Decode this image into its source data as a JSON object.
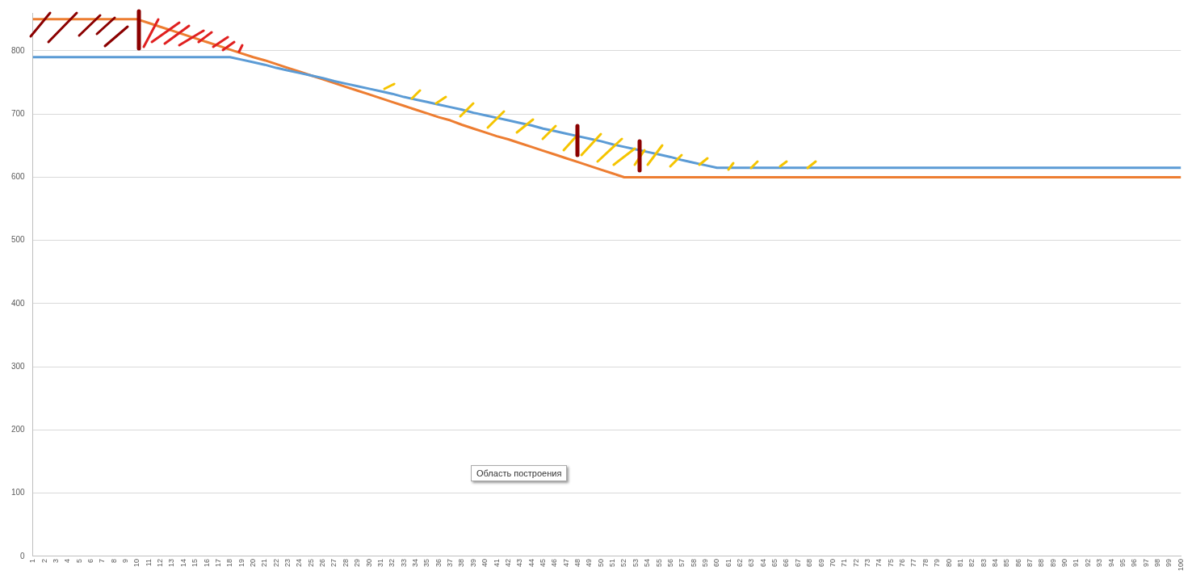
{
  "chart_data": {
    "type": "line",
    "categories": [
      "1",
      "2",
      "3",
      "4",
      "5",
      "6",
      "7",
      "8",
      "9",
      "10",
      "11",
      "12",
      "13",
      "14",
      "15",
      "16",
      "17",
      "18",
      "19",
      "20",
      "21",
      "22",
      "23",
      "24",
      "25",
      "26",
      "27",
      "28",
      "29",
      "30",
      "31",
      "32",
      "33",
      "34",
      "35",
      "36",
      "37",
      "38",
      "39",
      "40",
      "41",
      "42",
      "43",
      "44",
      "45",
      "46",
      "47",
      "48",
      "49",
      "50",
      "51",
      "52",
      "53",
      "54",
      "55",
      "56",
      "57",
      "58",
      "59",
      "60",
      "61",
      "62",
      "63",
      "64",
      "65",
      "66",
      "67",
      "68",
      "69",
      "70",
      "71",
      "72",
      "73",
      "74",
      "75",
      "76",
      "77",
      "78",
      "79",
      "80",
      "81",
      "82",
      "83",
      "84",
      "85",
      "86",
      "87",
      "88",
      "89",
      "90",
      "91",
      "92",
      "93",
      "94",
      "95",
      "96",
      "97",
      "98",
      "99",
      "100"
    ],
    "series": [
      {
        "color": "#5b9bd5",
        "values": [
          790,
          790,
          790,
          790,
          790,
          790,
          790,
          790,
          790,
          790,
          790,
          790,
          790,
          790,
          790,
          790,
          790,
          790,
          786,
          782,
          778,
          773,
          769,
          765,
          761,
          757,
          752,
          748,
          744,
          740,
          736,
          732,
          727,
          723,
          719,
          715,
          711,
          707,
          702,
          698,
          694,
          690,
          686,
          682,
          677,
          673,
          669,
          665,
          661,
          657,
          652,
          648,
          644,
          640,
          636,
          632,
          627,
          623,
          619,
          615,
          615,
          615,
          615,
          615,
          615,
          615,
          615,
          615,
          615,
          615,
          615,
          615,
          615,
          615,
          615,
          615,
          615,
          615,
          615,
          615,
          615,
          615,
          615,
          615,
          615,
          615,
          615,
          615,
          615,
          615,
          615,
          615,
          615,
          615,
          615,
          615,
          615,
          615,
          615,
          615
        ]
      },
      {
        "color": "#ed7d31",
        "values": [
          850,
          850,
          850,
          850,
          850,
          850,
          850,
          850,
          850,
          850,
          844,
          838,
          832,
          826,
          820,
          814,
          808,
          802,
          796,
          790,
          785,
          779,
          773,
          767,
          761,
          755,
          749,
          743,
          737,
          731,
          725,
          719,
          713,
          707,
          701,
          695,
          690,
          683,
          677,
          671,
          665,
          660,
          654,
          648,
          642,
          636,
          630,
          624,
          618,
          612,
          606,
          600,
          600,
          600,
          600,
          600,
          600,
          600,
          600,
          600,
          600,
          600,
          600,
          600,
          600,
          600,
          600,
          600,
          600,
          600,
          600,
          600,
          600,
          600,
          600,
          600,
          600,
          600,
          600,
          600,
          600,
          600,
          600,
          600,
          600,
          600,
          600,
          600,
          600,
          600,
          600,
          600,
          600,
          600,
          600,
          600,
          600,
          600,
          600,
          600
        ]
      }
    ],
    "ylim": [
      0,
      860
    ],
    "yticks": [
      0,
      100,
      200,
      300,
      400,
      500,
      600,
      700,
      800
    ],
    "grid": "y",
    "legend": false,
    "marker": "none",
    "line_style": "solid",
    "annotations": [
      "Область построения"
    ]
  }
}
